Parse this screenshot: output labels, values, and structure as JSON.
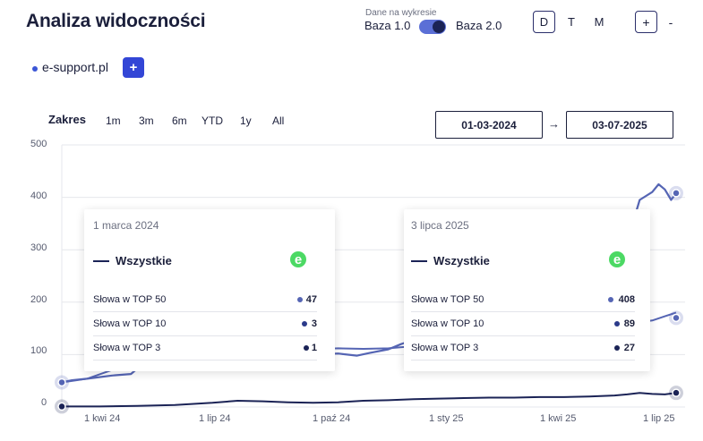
{
  "header": {
    "title": "Analiza widoczności",
    "base_caption": "Dane na wykresie",
    "base_left": "Baza 1.0",
    "base_right": "Baza 2.0",
    "granularity": [
      "D",
      "T",
      "M"
    ],
    "zoom_in": "+",
    "zoom_out": "-"
  },
  "domain": {
    "label": "e-support.pl",
    "add": "+"
  },
  "range": {
    "label": "Zakres",
    "options": [
      "1m",
      "3m",
      "6m",
      "YTD",
      "1y",
      "All"
    ],
    "start": "01-03-2024",
    "arrow": "→",
    "end": "03-07-2025"
  },
  "chart_data": {
    "type": "line",
    "ylim": [
      0,
      500
    ],
    "yticks": [
      "0",
      "100",
      "200",
      "300",
      "400",
      "500"
    ],
    "xticks": [
      "1 kwi 24",
      "1 lip 24",
      "1 paź 24",
      "1 sty 25",
      "1 kwi 25",
      "1 lip 25"
    ],
    "x_span_days": [
      0,
      489
    ],
    "series": [
      {
        "color": "#5565b4",
        "points": [
          [
            0,
            47
          ],
          [
            20,
            54
          ],
          [
            45,
            75
          ],
          [
            75,
            103
          ],
          [
            100,
            122
          ],
          [
            115,
            135
          ],
          [
            130,
            146
          ],
          [
            140,
            130
          ],
          [
            150,
            120
          ],
          [
            160,
            115
          ],
          [
            180,
            108
          ],
          [
            200,
            110
          ],
          [
            220,
            112
          ],
          [
            240,
            111
          ],
          [
            260,
            112
          ],
          [
            280,
            116
          ],
          [
            300,
            126
          ],
          [
            320,
            130
          ],
          [
            340,
            135
          ],
          [
            360,
            140
          ],
          [
            380,
            148
          ],
          [
            400,
            152
          ],
          [
            420,
            155
          ],
          [
            440,
            160
          ],
          [
            460,
            162
          ],
          [
            470,
            165
          ],
          [
            480,
            173
          ],
          [
            489,
            180
          ]
        ]
      },
      {
        "color": "#1b2356",
        "points": [
          [
            0,
            3
          ],
          [
            20,
            4
          ],
          [
            45,
            7
          ],
          [
            75,
            10
          ],
          [
            100,
            12
          ],
          [
            115,
            13
          ],
          [
            130,
            14
          ],
          [
            140,
            12
          ],
          [
            150,
            10
          ],
          [
            160,
            9
          ],
          [
            180,
            9
          ],
          [
            200,
            9
          ],
          [
            220,
            10
          ],
          [
            240,
            10
          ],
          [
            260,
            11
          ],
          [
            280,
            12
          ],
          [
            300,
            13
          ],
          [
            320,
            14
          ],
          [
            340,
            14
          ],
          [
            360,
            15
          ],
          [
            380,
            16
          ],
          [
            400,
            16
          ],
          [
            420,
            16
          ],
          [
            440,
            17
          ],
          [
            460,
            18
          ],
          [
            470,
            18
          ],
          [
            480,
            19
          ],
          [
            489,
            20
          ]
        ]
      }
    ],
    "series_top50": {
      "color": "#5565b4",
      "points": [
        [
          0,
          47
        ],
        [
          8,
          51
        ],
        [
          20,
          54
        ],
        [
          40,
          60
        ],
        [
          55,
          63
        ],
        [
          60,
          73
        ],
        [
          70,
          80
        ],
        [
          90,
          85
        ],
        [
          110,
          98
        ],
        [
          130,
          105
        ],
        [
          140,
          110
        ],
        [
          150,
          130
        ],
        [
          157,
          126
        ],
        [
          165,
          112
        ],
        [
          180,
          105
        ],
        [
          200,
          100
        ],
        [
          220,
          102
        ],
        [
          235,
          98
        ],
        [
          245,
          103
        ],
        [
          260,
          110
        ],
        [
          270,
          120
        ],
        [
          280,
          128
        ],
        [
          290,
          140
        ],
        [
          300,
          160
        ],
        [
          320,
          190
        ],
        [
          340,
          210
        ],
        [
          360,
          240
        ],
        [
          380,
          265
        ],
        [
          400,
          285
        ],
        [
          420,
          305
        ],
        [
          440,
          320
        ],
        [
          450,
          327
        ],
        [
          455,
          355
        ],
        [
          460,
          395
        ],
        [
          470,
          410
        ],
        [
          475,
          425
        ],
        [
          480,
          415
        ],
        [
          485,
          395
        ],
        [
          489,
          408
        ]
      ]
    },
    "series_top3": {
      "color": "#1b2356",
      "points": [
        [
          0,
          1
        ],
        [
          30,
          1
        ],
        [
          60,
          2
        ],
        [
          90,
          4
        ],
        [
          120,
          8
        ],
        [
          140,
          12
        ],
        [
          160,
          11
        ],
        [
          180,
          9
        ],
        [
          200,
          8
        ],
        [
          220,
          9
        ],
        [
          240,
          12
        ],
        [
          260,
          13
        ],
        [
          280,
          15
        ],
        [
          300,
          16
        ],
        [
          320,
          17
        ],
        [
          340,
          18
        ],
        [
          360,
          18
        ],
        [
          380,
          19
        ],
        [
          400,
          19
        ],
        [
          420,
          20
        ],
        [
          440,
          22
        ],
        [
          450,
          24
        ],
        [
          460,
          27
        ],
        [
          470,
          25
        ],
        [
          480,
          24
        ],
        [
          489,
          27
        ]
      ]
    }
  },
  "tooltip_left": {
    "date": "1 marca 2024",
    "series": "Wszystkie",
    "logo": "e",
    "rows": [
      {
        "label": "Słowa w TOP 50",
        "value": "47",
        "color": "#5565b4"
      },
      {
        "label": "Słowa w TOP 10",
        "value": "3",
        "color": "#2b3a8a"
      },
      {
        "label": "Słowa w TOP 3",
        "value": "1",
        "color": "#1b2356"
      }
    ]
  },
  "tooltip_right": {
    "date": "3 lipca 2025",
    "series": "Wszystkie",
    "logo": "e",
    "rows": [
      {
        "label": "Słowa w TOP 50",
        "value": "408",
        "color": "#5565b4"
      },
      {
        "label": "Słowa w TOP 10",
        "value": "89",
        "color": "#2b3a8a"
      },
      {
        "label": "Słowa w TOP 3",
        "value": "27",
        "color": "#1b2356"
      }
    ]
  }
}
